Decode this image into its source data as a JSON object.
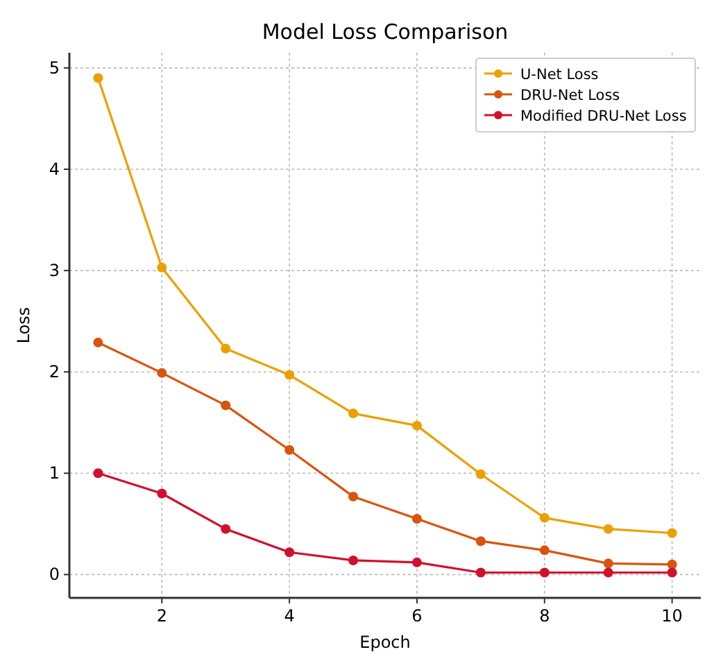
{
  "chart_data": {
    "type": "line",
    "title": "Model Loss Comparison",
    "xlabel": "Epoch",
    "ylabel": "Loss",
    "x": [
      1,
      2,
      3,
      4,
      5,
      6,
      7,
      8,
      9,
      10
    ],
    "series": [
      {
        "name": "U-Net Loss",
        "color": "#eba000",
        "values": [
          4.9,
          3.03,
          2.23,
          1.97,
          1.59,
          1.47,
          0.99,
          0.56,
          0.45,
          0.41
        ]
      },
      {
        "name": "DRU-Net Loss",
        "color": "#d9540c",
        "values": [
          2.29,
          1.99,
          1.67,
          1.23,
          0.77,
          0.55,
          0.33,
          0.24,
          0.11,
          0.1
        ]
      },
      {
        "name": "Modified DRU-Net Loss",
        "color": "#d0102e",
        "values": [
          1.0,
          0.8,
          0.45,
          0.22,
          0.14,
          0.12,
          0.02,
          0.02,
          0.02,
          0.02
        ]
      }
    ],
    "xlim": [
      0.55,
      10.45
    ],
    "ylim": [
      -0.23,
      5.15
    ],
    "xticks": [
      2,
      4,
      6,
      8,
      10
    ],
    "yticks": [
      0,
      1,
      2,
      3,
      4,
      5
    ],
    "grid": true,
    "legend": "top right",
    "marker": "circle",
    "line_style": "solid"
  }
}
